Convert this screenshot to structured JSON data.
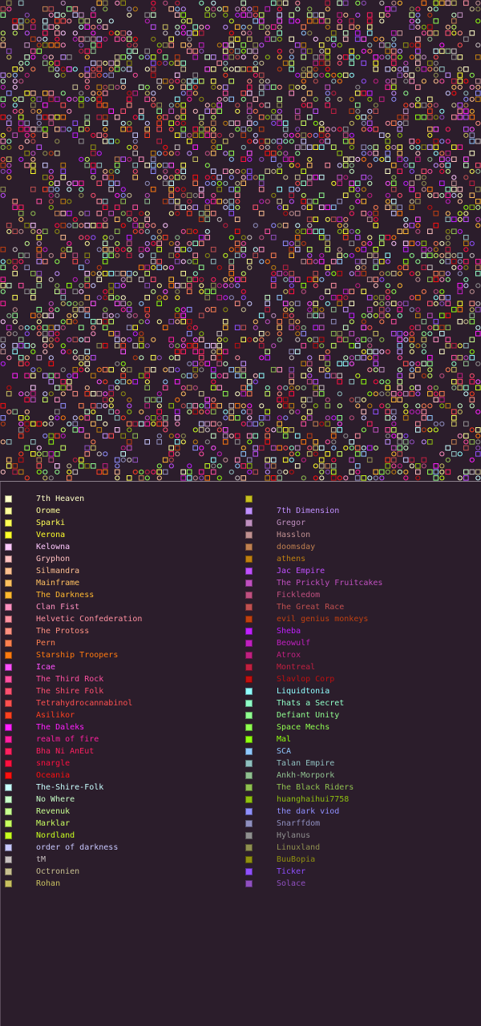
{
  "map": {
    "background": "#2b1d2b",
    "empty_cell_ratio": 0.55
  },
  "legend": {
    "left_column": [
      {
        "name": "7th Heaven",
        "color": "#ffffc8"
      },
      {
        "name": "Orome",
        "color": "#ffff9a"
      },
      {
        "name": "Sparki",
        "color": "#ffff55"
      },
      {
        "name": "Verona",
        "color": "#ffff2a"
      },
      {
        "name": "Kelowna",
        "color": "#ffc8ff"
      },
      {
        "name": "Gryphon",
        "color": "#ffc0c0"
      },
      {
        "name": "Silmandra",
        "color": "#ffc090"
      },
      {
        "name": "Mainframe",
        "color": "#ffc060"
      },
      {
        "name": "The Darkness",
        "color": "#ffb830"
      },
      {
        "name": "Clan Fist",
        "color": "#ff90c0"
      },
      {
        "name": "Helvetic Confederation",
        "color": "#ff90a0"
      },
      {
        "name": "The Protoss",
        "color": "#ff9080"
      },
      {
        "name": "Pern",
        "color": "#ff8050"
      },
      {
        "name": "Starship Troopers",
        "color": "#ff7a10"
      },
      {
        "name": "Icae",
        "color": "#ff50ff"
      },
      {
        "name": "The Third Rock",
        "color": "#ff50a0"
      },
      {
        "name": "The Shire Folk",
        "color": "#ff5070"
      },
      {
        "name": "Tetrahydrocannabinol",
        "color": "#ff5050"
      },
      {
        "name": "Asilikor",
        "color": "#ff4020"
      },
      {
        "name": "The Daleks",
        "color": "#ff20ff"
      },
      {
        "name": "realm of fire",
        "color": "#ff20a0"
      },
      {
        "name": "Bha Ni AnEut",
        "color": "#ff2060"
      },
      {
        "name": "snargle",
        "color": "#ff1040"
      },
      {
        "name": "Oceania",
        "color": "#ff1010"
      },
      {
        "name": "The-Shire-Folk",
        "color": "#c8ffff"
      },
      {
        "name": "No Where",
        "color": "#c8ffc8"
      },
      {
        "name": "Revenuk",
        "color": "#c8ff90"
      },
      {
        "name": "Marklar",
        "color": "#c8ff60"
      },
      {
        "name": "Nordland",
        "color": "#c8ff20"
      },
      {
        "name": "order of darkness",
        "color": "#c8c8ff"
      },
      {
        "name": "tM",
        "color": "#c8c0c0"
      },
      {
        "name": "Octronien",
        "color": "#c8c090"
      },
      {
        "name": "Rohan",
        "color": "#c8c060"
      }
    ],
    "right_column_top_swatch": {
      "color": "#c8c020"
    },
    "right_column": [
      {
        "name": "7th Dimension",
        "color": "#c090ff"
      },
      {
        "name": "Gregor",
        "color": "#c090c0"
      },
      {
        "name": "Hasslon",
        "color": "#c09090"
      },
      {
        "name": "doomsday",
        "color": "#c08050"
      },
      {
        "name": "athens",
        "color": "#c08010"
      },
      {
        "name": "Jac Empire",
        "color": "#c050ff"
      },
      {
        "name": "The Prickly Fruitcakes",
        "color": "#c050c0"
      },
      {
        "name": "Fickledom",
        "color": "#c05080"
      },
      {
        "name": "The Great Race",
        "color": "#c05050"
      },
      {
        "name": "evil genius monkeys",
        "color": "#c04010"
      },
      {
        "name": "Sheba",
        "color": "#c020ff"
      },
      {
        "name": "Beowulf",
        "color": "#c020c0"
      },
      {
        "name": "Atrox",
        "color": "#c02080"
      },
      {
        "name": "Montreal",
        "color": "#c02040"
      },
      {
        "name": "Slavlop Corp",
        "color": "#c01010"
      },
      {
        "name": "Liquidtonia",
        "color": "#90ffff"
      },
      {
        "name": "Thats a Secret",
        "color": "#90ffc8"
      },
      {
        "name": "Defiant Unity",
        "color": "#90ff90"
      },
      {
        "name": "Space Mechs",
        "color": "#90ff50"
      },
      {
        "name": "Mal",
        "color": "#90ff10"
      },
      {
        "name": "SCA",
        "color": "#90c8ff"
      },
      {
        "name": "Talan Empire",
        "color": "#90c0c0"
      },
      {
        "name": "Ankh-Morpork",
        "color": "#90c090"
      },
      {
        "name": "The Black Riders",
        "color": "#90c050"
      },
      {
        "name": "huanghaihui7758",
        "color": "#90c010"
      },
      {
        "name": "the dark viod",
        "color": "#9090ff"
      },
      {
        "name": "Snarffdom",
        "color": "#9090c0"
      },
      {
        "name": "Hylanus",
        "color": "#909090"
      },
      {
        "name": "Linuxland",
        "color": "#909050"
      },
      {
        "name": "BuuBopia",
        "color": "#909010"
      },
      {
        "name": "Ticker",
        "color": "#9050ff"
      },
      {
        "name": "Solace",
        "color": "#9050c0"
      }
    ]
  }
}
